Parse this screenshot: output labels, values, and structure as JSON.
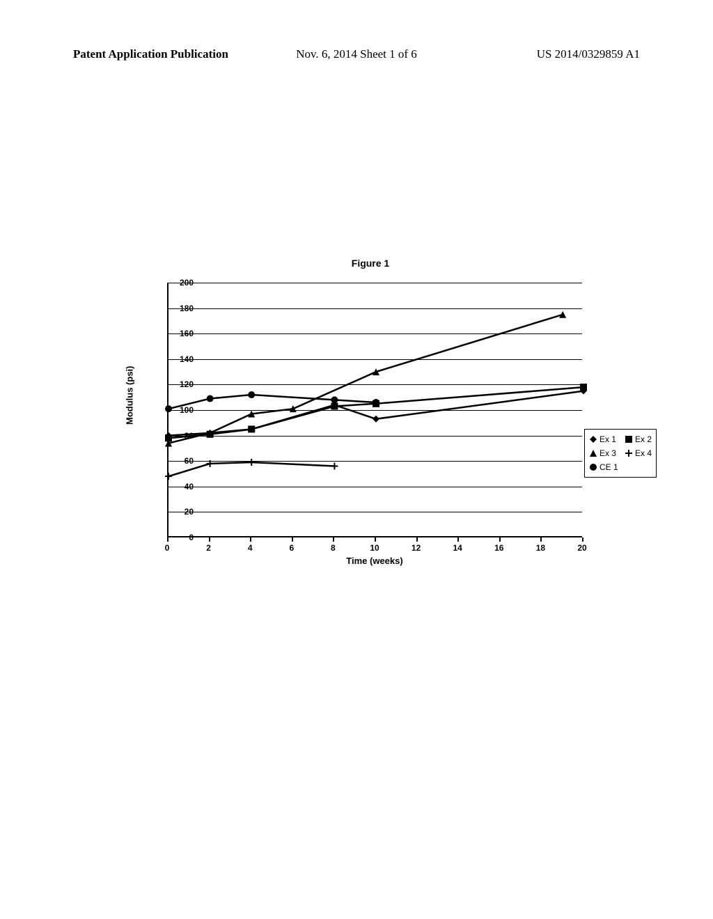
{
  "header": {
    "left": "Patent Application Publication",
    "center": "Nov. 6, 2014  Sheet 1 of 6",
    "right": "US 2014/0329859 A1"
  },
  "figure": {
    "title": "Figure 1",
    "chart": {
      "type": "line",
      "x_title": "Time (weeks)",
      "y_title": "Modulus (psi)",
      "xlim": [
        0,
        20
      ],
      "ylim": [
        0,
        200
      ],
      "xtick_step": 2,
      "ytick_step": 20,
      "grid_color": "#000000",
      "background_color": "#ffffff",
      "line_width": 2.5,
      "series": [
        {
          "name": "Ex 1",
          "marker": "diamond",
          "x": [
            0,
            2,
            4,
            8,
            10,
            20
          ],
          "y": [
            80,
            82,
            85,
            104,
            93,
            115
          ]
        },
        {
          "name": "Ex 2",
          "marker": "square",
          "x": [
            0,
            2,
            4,
            8,
            10,
            20
          ],
          "y": [
            78,
            81,
            85,
            103,
            105,
            118
          ]
        },
        {
          "name": "Ex 3",
          "marker": "triangle",
          "x": [
            0,
            2,
            4,
            6,
            10,
            19
          ],
          "y": [
            74,
            82,
            97,
            101,
            130,
            175
          ]
        },
        {
          "name": "Ex 4",
          "marker": "plus",
          "x": [
            0,
            2,
            4,
            8
          ],
          "y": [
            48,
            58,
            59,
            56
          ]
        },
        {
          "name": "CE 1",
          "marker": "circle",
          "x": [
            0,
            2,
            4,
            8,
            10
          ],
          "y": [
            101,
            109,
            112,
            108,
            106
          ]
        }
      ],
      "legend": {
        "rows": [
          [
            {
              "series": 0
            },
            {
              "series": 1
            }
          ],
          [
            {
              "series": 2
            },
            {
              "series": 3
            }
          ],
          [
            {
              "series": 4
            }
          ]
        ],
        "x": 20.1,
        "y_top": 85
      }
    }
  }
}
